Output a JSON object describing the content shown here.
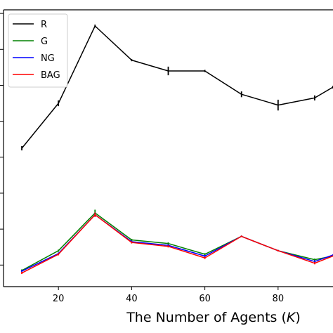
{
  "chart_data": {
    "type": "line",
    "xlabel": "The Number of Agents (K)",
    "xlabel_parts": {
      "before": "The Number of Agents (",
      "italic": "K",
      "after": ")"
    },
    "ylabel": "",
    "xlim": [
      5,
      95
    ],
    "ylim": [
      0.0,
      0.77
    ],
    "xticks": [
      20,
      40,
      60,
      80
    ],
    "legend_position": "top-left",
    "grid": false,
    "x": [
      10,
      20,
      30,
      40,
      50,
      60,
      70,
      80,
      90,
      95
    ],
    "series": [
      {
        "name": "R",
        "color": "#000000",
        "values": [
          0.385,
          0.51,
          0.725,
          0.63,
          0.6,
          0.6,
          0.535,
          0.505,
          0.525,
          0.555
        ],
        "errors": [
          0.006,
          0.008,
          0.004,
          0.003,
          0.012,
          0.003,
          0.008,
          0.015,
          0.007,
          0.004
        ]
      },
      {
        "name": "G",
        "color": "#008000",
        "values": [
          0.045,
          0.1,
          0.205,
          0.13,
          0.12,
          0.09,
          0.14,
          0.1,
          0.075,
          0.085
        ],
        "errors": [
          0.003,
          0.003,
          0.009,
          0.003,
          0.003,
          0.003,
          0.002,
          0.002,
          0.003,
          0.002
        ]
      },
      {
        "name": "NG",
        "color": "#0000ff",
        "values": [
          0.043,
          0.092,
          0.2,
          0.125,
          0.115,
          0.085,
          0.14,
          0.1,
          0.07,
          0.088
        ],
        "errors": [
          0.003,
          0.003,
          0.006,
          0.003,
          0.003,
          0.003,
          0.002,
          0.002,
          0.003,
          0.002
        ]
      },
      {
        "name": "BAG",
        "color": "#ff0000",
        "values": [
          0.038,
          0.09,
          0.2,
          0.123,
          0.112,
          0.08,
          0.14,
          0.1,
          0.065,
          0.085
        ],
        "errors": [
          0.003,
          0.003,
          0.006,
          0.003,
          0.003,
          0.003,
          0.002,
          0.002,
          0.003,
          0.002
        ]
      }
    ]
  }
}
